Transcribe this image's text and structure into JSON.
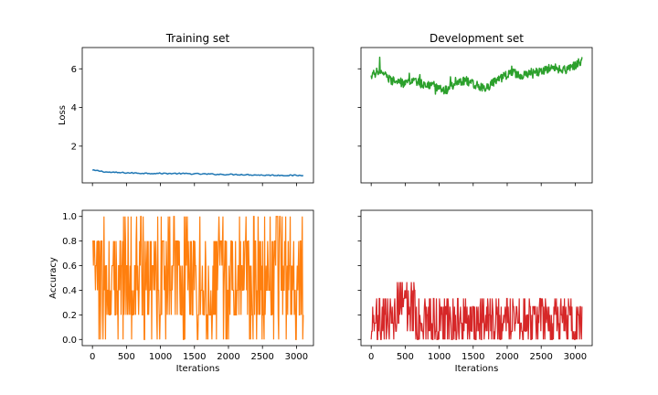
{
  "chart_data": [
    {
      "type": "line",
      "title": "Training set",
      "xlabel": "",
      "ylabel": "Loss",
      "xlim": [
        -150,
        3250
      ],
      "ylim": [
        0.1,
        7.1
      ],
      "yticks": [
        2,
        4,
        6
      ],
      "xticks": [
        0,
        500,
        1000,
        1500,
        2000,
        2500,
        3000
      ],
      "show_xtick_labels": false,
      "show_ytick_labels": true,
      "grid": false,
      "color": "#1f77b4",
      "series": [
        {
          "x": [
            0,
            100,
            200,
            300,
            500,
            700,
            1000,
            1300,
            1600,
            1900,
            2200,
            2500,
            2800,
            3100
          ],
          "values": [
            0.75,
            0.72,
            0.66,
            0.64,
            0.62,
            0.6,
            0.59,
            0.58,
            0.56,
            0.54,
            0.53,
            0.5,
            0.49,
            0.48
          ]
        }
      ]
    },
    {
      "type": "line",
      "title": "Development set",
      "xlabel": "",
      "ylabel": "",
      "xlim": [
        -150,
        3250
      ],
      "ylim": [
        0.1,
        7.1
      ],
      "yticks": [
        2,
        4,
        6
      ],
      "xticks": [
        0,
        500,
        1000,
        1500,
        2000,
        2500,
        3000
      ],
      "show_xtick_labels": false,
      "show_ytick_labels": false,
      "grid": false,
      "color": "#2ca02c",
      "series": [
        {
          "x": [
            0,
            100,
            200,
            300,
            400,
            500,
            600,
            700,
            800,
            900,
            1000,
            1100,
            1200,
            1300,
            1400,
            1500,
            1600,
            1700,
            1800,
            1900,
            2000,
            2100,
            2200,
            2300,
            2400,
            2500,
            2600,
            2700,
            2800,
            2900,
            3000,
            3100
          ],
          "values": [
            5.6,
            5.9,
            5.7,
            5.4,
            5.3,
            5.2,
            5.4,
            5.3,
            5.1,
            5.2,
            5.0,
            4.9,
            5.1,
            5.3,
            5.4,
            5.2,
            5.1,
            5.0,
            5.3,
            5.5,
            5.7,
            5.8,
            5.6,
            5.7,
            5.9,
            5.8,
            6.0,
            6.1,
            5.9,
            6.0,
            6.2,
            6.4
          ]
        }
      ]
    },
    {
      "type": "line",
      "title": "",
      "xlabel": "Iterations",
      "ylabel": "Accuracy",
      "xlim": [
        -150,
        3250
      ],
      "ylim": [
        -0.05,
        1.05
      ],
      "yticks": [
        0.0,
        0.2,
        0.4,
        0.6,
        0.8,
        1.0
      ],
      "ytick_labels": [
        "0.0",
        "0.2",
        "0.4",
        "0.6",
        "0.8",
        "1.0"
      ],
      "xticks": [
        0,
        500,
        1000,
        1500,
        2000,
        2500,
        3000
      ],
      "xtick_labels": [
        "0",
        "500",
        "1000",
        "1500",
        "2000",
        "2500",
        "3000"
      ],
      "show_xtick_labels": true,
      "show_ytick_labels": true,
      "grid": false,
      "color": "#ff7f0e",
      "series": [
        {
          "x_range": [
            0,
            3100
          ],
          "levels": [
            0.0,
            0.2,
            0.4,
            0.6,
            0.8,
            1.0
          ],
          "band": [
            0.2,
            0.8
          ]
        }
      ]
    },
    {
      "type": "line",
      "title": "",
      "xlabel": "Iterations",
      "ylabel": "",
      "xlim": [
        -150,
        3250
      ],
      "ylim": [
        -0.05,
        1.05
      ],
      "yticks": [
        0.0,
        0.2,
        0.4,
        0.6,
        0.8,
        1.0
      ],
      "xticks": [
        0,
        500,
        1000,
        1500,
        2000,
        2500,
        3000
      ],
      "xtick_labels": [
        "0",
        "500",
        "1000",
        "1500",
        "2000",
        "2500",
        "3000"
      ],
      "show_xtick_labels": true,
      "show_ytick_labels": false,
      "grid": false,
      "color": "#d62728",
      "series": [
        {
          "x_range": [
            0,
            3100
          ],
          "levels": [
            0.0,
            0.0667,
            0.1333,
            0.2,
            0.2667,
            0.3333,
            0.4,
            0.4667
          ],
          "band": [
            0.0,
            0.3333
          ]
        }
      ]
    }
  ]
}
